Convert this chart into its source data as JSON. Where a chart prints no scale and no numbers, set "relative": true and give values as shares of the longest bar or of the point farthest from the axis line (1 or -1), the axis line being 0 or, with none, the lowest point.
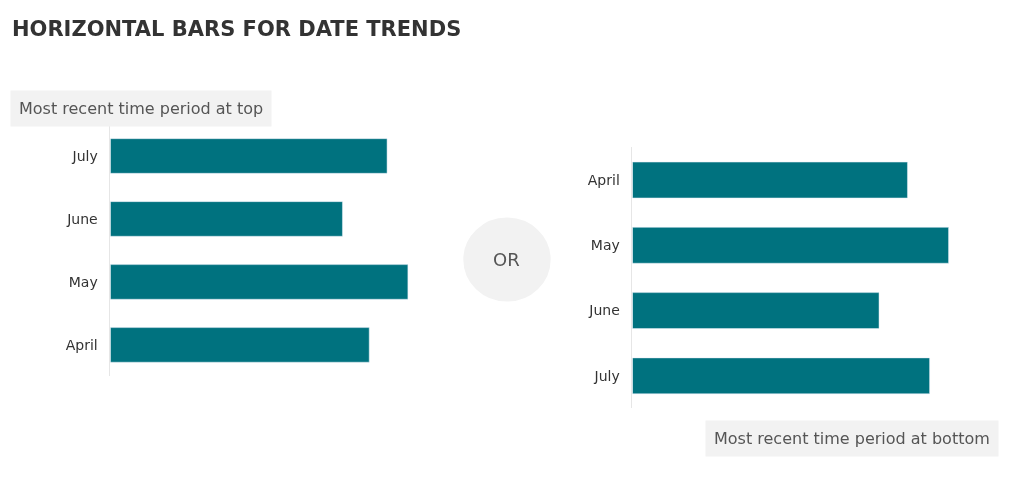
{
  "chart_data": [
    {
      "type": "bar",
      "orientation": "horizontal",
      "relative": true,
      "title": "HORIZONTAL BARS FOR DATE TRENDS",
      "subtitle": "Most recent time period at top",
      "categories": [
        "July",
        "June",
        "May",
        "April"
      ],
      "values": [
        0.93,
        0.78,
        1,
        0.87
      ],
      "color": "#00727f",
      "annotations": [
        "OR"
      ]
    },
    {
      "type": "bar",
      "orientation": "horizontal",
      "relative": true,
      "subtitle": "Most recent time period at bottom",
      "categories": [
        "April",
        "May",
        "June",
        "July"
      ],
      "values": [
        0.87,
        1,
        0.78,
        0.94
      ],
      "color": "#00727f"
    }
  ]
}
